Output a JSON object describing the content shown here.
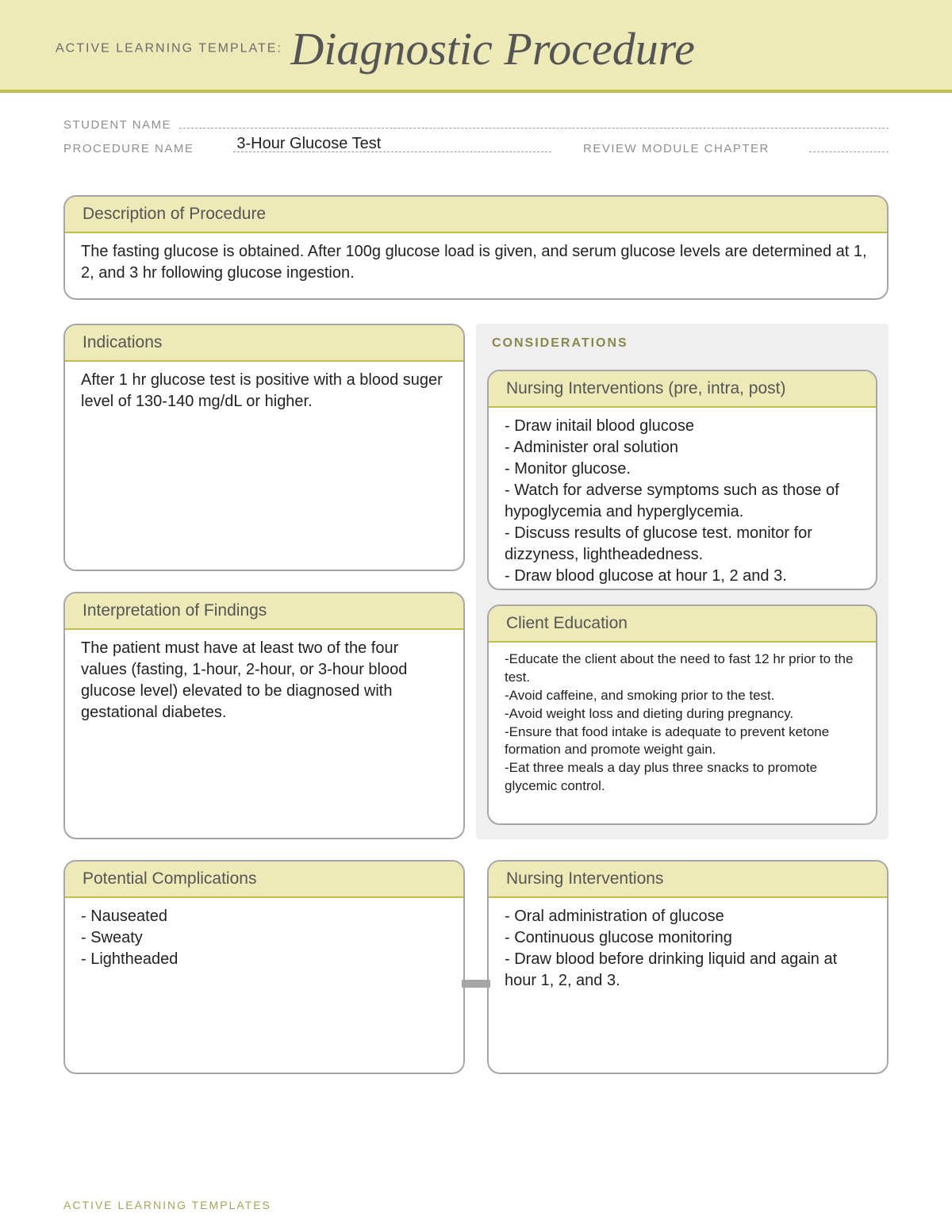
{
  "header": {
    "prefix": "ACTIVE LEARNING TEMPLATE:",
    "title": "Diagnostic Procedure"
  },
  "meta": {
    "student_name_label": "STUDENT NAME",
    "student_name_value": "",
    "procedure_name_label": "PROCEDURE NAME",
    "procedure_name_value": "3-Hour Glucose Test",
    "review_label": "REVIEW MODULE CHAPTER",
    "review_value": ""
  },
  "description": {
    "heading": "Description of Procedure",
    "body": "The fasting glucose is obtained. After 100g glucose load is given, and serum glucose levels are determined at 1, 2, and 3 hr following glucose ingestion."
  },
  "indications": {
    "heading": "Indications",
    "body": "After 1 hr glucose test is positive with a blood suger level of 130-140 mg/dL or higher."
  },
  "interpretation": {
    "heading": "Interpretation of Findings",
    "body": "The patient must have at least two of the four values (fasting, 1-hour, 2-hour, or 3-hour blood glucose level) elevated to be diagnosed with gestational diabetes."
  },
  "considerations_label": "CONSIDERATIONS",
  "nursing_pre": {
    "heading": "Nursing Interventions (pre, intra, post)",
    "body": "- Draw initail blood glucose\n- Administer oral solution\n- Monitor glucose.\n- Watch for adverse symptoms such as those of hypoglycemia and hyperglycemia.\n- Discuss results of glucose test. monitor for dizzyness, lightheadedness.\n- Draw blood glucose at hour 1, 2 and 3."
  },
  "client_ed": {
    "heading": "Client Education",
    "body": "-Educate the client about the need to fast 12 hr prior to the test.\n-Avoid caffeine, and smoking prior to the test.\n-Avoid weight loss and dieting during pregnancy.\n-Ensure that food intake is adequate to prevent ketone formation and promote weight gain.\n-Eat three meals a day plus three snacks to promote glycemic control."
  },
  "complications": {
    "heading": "Potential Complications",
    "body": "- Nauseated\n- Sweaty\n- Lightheaded"
  },
  "nursing_int": {
    "heading": "Nursing Interventions",
    "body": "- Oral administration of glucose\n- Continuous glucose monitoring\n- Draw blood before drinking liquid and again at hour 1, 2, and 3."
  },
  "footer": "ACTIVE LEARNING TEMPLATES",
  "colors": {
    "band_bg": "#edeab8",
    "band_border": "#c0bd4a",
    "box_border": "#a6a6a6",
    "considerations_bg": "#efefef"
  }
}
